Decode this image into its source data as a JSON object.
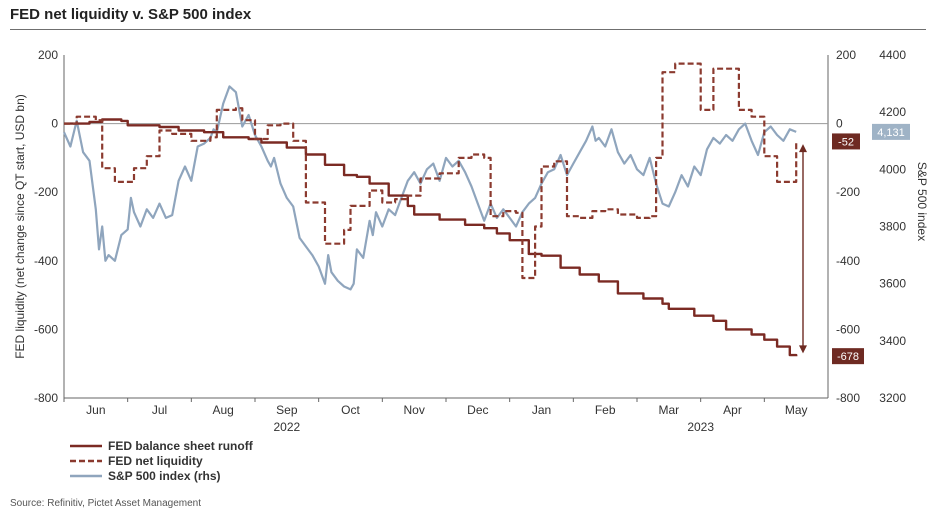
{
  "title": "FED net liquidity v. S&P 500 index",
  "source": "Source: Refinitiv, Pictet Asset Management",
  "colors": {
    "runoff": "#7b2a23",
    "liquidity": "#8b3a2f",
    "sp500": "#8fa5bd",
    "callout_dark": "#6e2a22",
    "callout_blue": "#9fb3c6"
  },
  "chart_data": {
    "type": "line",
    "title": "FED net liquidity v. S&P 500 index",
    "ylabel": "FED liquidity (net change since QT start, USD bn)",
    "ylabel_right": "S&P 500 index",
    "ylim": [
      -800,
      200
    ],
    "yticks": [
      200,
      0,
      -200,
      -400,
      -600,
      -800
    ],
    "ylim_right": [
      3200,
      4400
    ],
    "yticks_right": [
      4400,
      4200,
      4000,
      3800,
      3600,
      3400,
      3200
    ],
    "xlim": [
      -0.5,
      11.5
    ],
    "x_months": [
      "Jun",
      "Jul",
      "Aug",
      "Sep",
      "Oct",
      "Nov",
      "Dec",
      "Jan",
      "Feb",
      "Mar",
      "Apr",
      "May"
    ],
    "x_years": [
      {
        "label": "2022",
        "at": 3
      },
      {
        "label": "2023",
        "at": 9.5
      }
    ],
    "grid": false,
    "legend_position": "bottom-left",
    "annotations": [
      {
        "text": "-52",
        "series": "FED net liquidity",
        "value": -52
      },
      {
        "text": "-678",
        "series": "FED balance sheet runoff",
        "value": -678
      },
      {
        "text": "4,131",
        "series": "S&P 500 index (rhs)",
        "value": 4131
      }
    ],
    "series": [
      {
        "name": "FED balance sheet runoff",
        "axis": "left",
        "style": "solid",
        "step": true,
        "points": [
          [
            -0.5,
            0
          ],
          [
            -0.1,
            5
          ],
          [
            0.1,
            12
          ],
          [
            0.4,
            8
          ],
          [
            0.5,
            -5
          ],
          [
            1.0,
            -10
          ],
          [
            1.3,
            -20
          ],
          [
            1.7,
            -25
          ],
          [
            2.0,
            -40
          ],
          [
            2.4,
            -45
          ],
          [
            2.6,
            -55
          ],
          [
            3.0,
            -70
          ],
          [
            3.3,
            -90
          ],
          [
            3.6,
            -120
          ],
          [
            3.9,
            -150
          ],
          [
            4.1,
            -155
          ],
          [
            4.3,
            -175
          ],
          [
            4.6,
            -210
          ],
          [
            4.9,
            -240
          ],
          [
            5.0,
            -265
          ],
          [
            5.4,
            -280
          ],
          [
            5.8,
            -295
          ],
          [
            6.1,
            -305
          ],
          [
            6.3,
            -320
          ],
          [
            6.5,
            -340
          ],
          [
            6.8,
            -380
          ],
          [
            7.0,
            -385
          ],
          [
            7.3,
            -420
          ],
          [
            7.6,
            -440
          ],
          [
            7.9,
            -460
          ],
          [
            8.2,
            -495
          ],
          [
            8.6,
            -510
          ],
          [
            8.9,
            -525
          ],
          [
            9.0,
            -540
          ],
          [
            9.4,
            -560
          ],
          [
            9.7,
            -575
          ],
          [
            9.9,
            -600
          ],
          [
            10.3,
            -615
          ],
          [
            10.5,
            -630
          ],
          [
            10.7,
            -650
          ],
          [
            10.9,
            -675
          ],
          [
            11.0,
            -678
          ]
        ]
      },
      {
        "name": "FED net liquidity",
        "axis": "left",
        "style": "dashed",
        "step": true,
        "points": [
          [
            -0.5,
            0
          ],
          [
            -0.3,
            20
          ],
          [
            0.0,
            10
          ],
          [
            0.1,
            -130
          ],
          [
            0.3,
            -170
          ],
          [
            0.6,
            -130
          ],
          [
            0.8,
            -95
          ],
          [
            1.0,
            -20
          ],
          [
            1.2,
            -30
          ],
          [
            1.5,
            -50
          ],
          [
            1.8,
            -40
          ],
          [
            1.9,
            40
          ],
          [
            2.2,
            45
          ],
          [
            2.3,
            10
          ],
          [
            2.5,
            -45
          ],
          [
            2.7,
            -5
          ],
          [
            2.9,
            0
          ],
          [
            3.1,
            -50
          ],
          [
            3.3,
            -230
          ],
          [
            3.6,
            -350
          ],
          [
            3.9,
            -310
          ],
          [
            4.0,
            -240
          ],
          [
            4.3,
            -195
          ],
          [
            4.5,
            -230
          ],
          [
            4.7,
            -220
          ],
          [
            4.9,
            -210
          ],
          [
            5.1,
            -160
          ],
          [
            5.4,
            -145
          ],
          [
            5.7,
            -100
          ],
          [
            5.9,
            -90
          ],
          [
            6.1,
            -100
          ],
          [
            6.2,
            -270
          ],
          [
            6.4,
            -255
          ],
          [
            6.6,
            -260
          ],
          [
            6.7,
            -450
          ],
          [
            6.9,
            -300
          ],
          [
            7.0,
            -125
          ],
          [
            7.2,
            -110
          ],
          [
            7.4,
            -270
          ],
          [
            7.6,
            -275
          ],
          [
            7.8,
            -255
          ],
          [
            8.0,
            -250
          ],
          [
            8.2,
            -265
          ],
          [
            8.5,
            -275
          ],
          [
            8.7,
            -270
          ],
          [
            8.8,
            -100
          ],
          [
            8.9,
            150
          ],
          [
            9.1,
            175
          ],
          [
            9.3,
            175
          ],
          [
            9.5,
            40
          ],
          [
            9.7,
            160
          ],
          [
            9.9,
            160
          ],
          [
            10.1,
            40
          ],
          [
            10.3,
            20
          ],
          [
            10.5,
            -95
          ],
          [
            10.7,
            -170
          ],
          [
            10.9,
            -170
          ],
          [
            11.0,
            -52
          ]
        ]
      },
      {
        "name": "S&P 500 index (rhs)",
        "axis": "right",
        "style": "solid",
        "step": false,
        "points": [
          [
            -0.5,
            4130
          ],
          [
            -0.4,
            4080
          ],
          [
            -0.3,
            4170
          ],
          [
            -0.2,
            4060
          ],
          [
            -0.1,
            4030
          ],
          [
            0.0,
            3860
          ],
          [
            0.05,
            3720
          ],
          [
            0.1,
            3800
          ],
          [
            0.15,
            3680
          ],
          [
            0.2,
            3700
          ],
          [
            0.3,
            3680
          ],
          [
            0.4,
            3770
          ],
          [
            0.5,
            3790
          ],
          [
            0.55,
            3900
          ],
          [
            0.6,
            3850
          ],
          [
            0.7,
            3800
          ],
          [
            0.8,
            3860
          ],
          [
            0.9,
            3830
          ],
          [
            1.0,
            3880
          ],
          [
            1.1,
            3830
          ],
          [
            1.2,
            3840
          ],
          [
            1.3,
            3960
          ],
          [
            1.4,
            4010
          ],
          [
            1.5,
            3960
          ],
          [
            1.6,
            4080
          ],
          [
            1.7,
            4090
          ],
          [
            1.8,
            4110
          ],
          [
            1.85,
            4140
          ],
          [
            1.9,
            4130
          ],
          [
            2.0,
            4230
          ],
          [
            2.1,
            4290
          ],
          [
            2.2,
            4270
          ],
          [
            2.3,
            4150
          ],
          [
            2.4,
            4190
          ],
          [
            2.5,
            4120
          ],
          [
            2.6,
            4080
          ],
          [
            2.7,
            4030
          ],
          [
            2.75,
            4010
          ],
          [
            2.8,
            4040
          ],
          [
            2.9,
            3950
          ],
          [
            3.0,
            3900
          ],
          [
            3.1,
            3870
          ],
          [
            3.2,
            3760
          ],
          [
            3.3,
            3730
          ],
          [
            3.4,
            3700
          ],
          [
            3.5,
            3660
          ],
          [
            3.6,
            3600
          ],
          [
            3.65,
            3700
          ],
          [
            3.7,
            3640
          ],
          [
            3.8,
            3610
          ],
          [
            3.9,
            3590
          ],
          [
            4.0,
            3580
          ],
          [
            4.05,
            3600
          ],
          [
            4.1,
            3720
          ],
          [
            4.2,
            3690
          ],
          [
            4.3,
            3820
          ],
          [
            4.35,
            3770
          ],
          [
            4.4,
            3850
          ],
          [
            4.5,
            3800
          ],
          [
            4.6,
            3860
          ],
          [
            4.7,
            3840
          ],
          [
            4.8,
            3900
          ],
          [
            4.9,
            3960
          ],
          [
            5.0,
            3990
          ],
          [
            5.1,
            3950
          ],
          [
            5.2,
            4000
          ],
          [
            5.3,
            4020
          ],
          [
            5.4,
            3960
          ],
          [
            5.5,
            4040
          ],
          [
            5.6,
            4010
          ],
          [
            5.7,
            4030
          ],
          [
            5.8,
            3990
          ],
          [
            5.9,
            3940
          ],
          [
            6.0,
            3880
          ],
          [
            6.1,
            3820
          ],
          [
            6.2,
            3880
          ],
          [
            6.3,
            3830
          ],
          [
            6.4,
            3860
          ],
          [
            6.5,
            3830
          ],
          [
            6.6,
            3800
          ],
          [
            6.7,
            3850
          ],
          [
            6.8,
            3880
          ],
          [
            6.9,
            3900
          ],
          [
            7.0,
            3950
          ],
          [
            7.1,
            3990
          ],
          [
            7.2,
            4000
          ],
          [
            7.3,
            4050
          ],
          [
            7.4,
            3980
          ],
          [
            7.5,
            4020
          ],
          [
            7.6,
            4060
          ],
          [
            7.7,
            4100
          ],
          [
            7.8,
            4150
          ],
          [
            7.85,
            4100
          ],
          [
            7.9,
            4110
          ],
          [
            8.0,
            4080
          ],
          [
            8.1,
            4140
          ],
          [
            8.2,
            4060
          ],
          [
            8.3,
            4020
          ],
          [
            8.4,
            4050
          ],
          [
            8.5,
            4000
          ],
          [
            8.6,
            3980
          ],
          [
            8.7,
            4040
          ],
          [
            8.8,
            3950
          ],
          [
            8.9,
            3880
          ],
          [
            9.0,
            3870
          ],
          [
            9.1,
            3920
          ],
          [
            9.2,
            3980
          ],
          [
            9.3,
            3940
          ],
          [
            9.4,
            4010
          ],
          [
            9.5,
            3980
          ],
          [
            9.6,
            4070
          ],
          [
            9.7,
            4110
          ],
          [
            9.8,
            4090
          ],
          [
            9.9,
            4120
          ],
          [
            10.0,
            4100
          ],
          [
            10.1,
            4140
          ],
          [
            10.2,
            4160
          ],
          [
            10.3,
            4100
          ],
          [
            10.4,
            4050
          ],
          [
            10.5,
            4130
          ],
          [
            10.6,
            4150
          ],
          [
            10.7,
            4120
          ],
          [
            10.8,
            4100
          ],
          [
            10.9,
            4140
          ],
          [
            11.0,
            4131
          ]
        ]
      }
    ]
  },
  "legend": [
    {
      "label": "FED balance sheet runoff",
      "style": "solid",
      "color": "#7b2a23"
    },
    {
      "label": "FED net liquidity",
      "style": "dashed",
      "color": "#8b3a2f"
    },
    {
      "label": "S&P 500 index (rhs)",
      "style": "solid",
      "color": "#8fa5bd"
    }
  ]
}
